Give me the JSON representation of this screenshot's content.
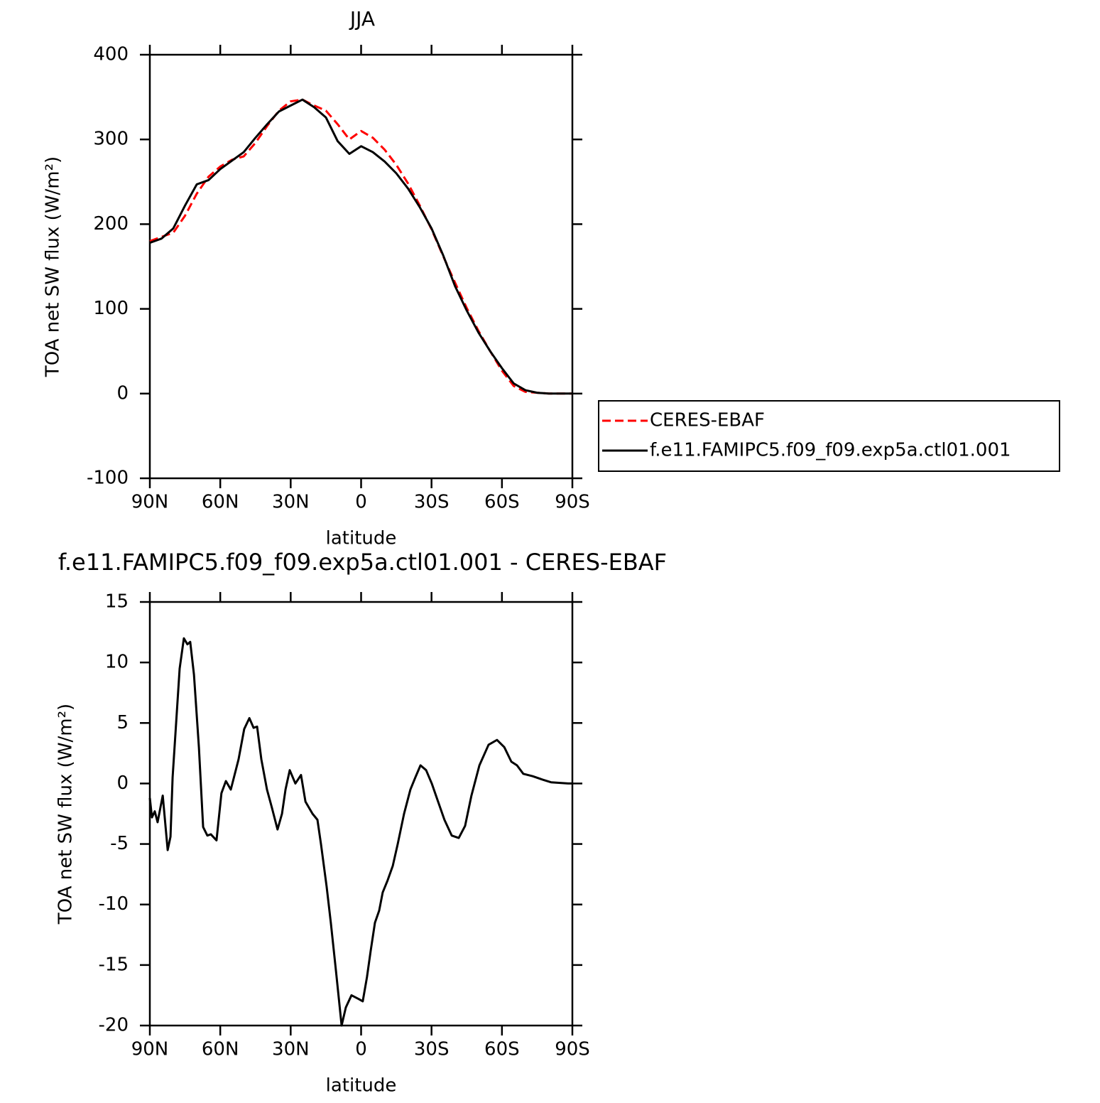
{
  "chart_data": [
    {
      "type": "line",
      "title": "JJA",
      "xlabel": "latitude",
      "ylabel": "TOA net SW flux (W/m²)",
      "xlim": [
        90,
        -90
      ],
      "xticks": [
        {
          "value": 90,
          "label": "90N"
        },
        {
          "value": 60,
          "label": "60N"
        },
        {
          "value": 30,
          "label": "30N"
        },
        0,
        {
          "value": -30,
          "label": "30S"
        },
        {
          "value": -60,
          "label": "60S"
        },
        {
          "value": -90,
          "label": "90S"
        }
      ],
      "ylim": [
        -100,
        400
      ],
      "yticks": [
        -100,
        0,
        100,
        200,
        300,
        400
      ],
      "legend": "right",
      "x": [
        90,
        85,
        80,
        75,
        70,
        65,
        60,
        55,
        50,
        45,
        40,
        35,
        30,
        25,
        20,
        15,
        10,
        5,
        0,
        -5,
        -10,
        -15,
        -20,
        -25,
        -30,
        -35,
        -40,
        -45,
        -50,
        -55,
        -60,
        -65,
        -70,
        -75,
        -80,
        -85,
        -90
      ],
      "series": [
        {
          "name": "CERES-EBAF",
          "color": "#ff0000",
          "linestyle": "dashed",
          "values": [
            180,
            185,
            190,
            210,
            236,
            256,
            268,
            276,
            280,
            296,
            316,
            334,
            345,
            347,
            340,
            334,
            318,
            300,
            310,
            302,
            288,
            270,
            248,
            222,
            194,
            162,
            131,
            101,
            74,
            50,
            27,
            9,
            2,
            1,
            0,
            0,
            0
          ]
        },
        {
          "name": "f.e11.FAMIPC5.f09_f09.exp5a.ctl01.001",
          "color": "#000000",
          "linestyle": "solid",
          "values": [
            178,
            183,
            195,
            222,
            247,
            252,
            265,
            275,
            285,
            302,
            318,
            333,
            340,
            347,
            338,
            326,
            298,
            283,
            292,
            285,
            274,
            260,
            242,
            220,
            195,
            163,
            127,
            98,
            72,
            50,
            30,
            12,
            4,
            1,
            0,
            0,
            0
          ]
        }
      ]
    },
    {
      "type": "line",
      "title": "f.e11.FAMIPC5.f09_f09.exp5a.ctl01.001 - CERES-EBAF",
      "xlabel": "latitude",
      "ylabel": "TOA net SW flux (W/m²)",
      "xlim": [
        90,
        -90
      ],
      "xticks": [
        {
          "value": 90,
          "label": "90N"
        },
        {
          "value": 60,
          "label": "60N"
        },
        {
          "value": 30,
          "label": "30N"
        },
        0,
        {
          "value": -30,
          "label": "30S"
        },
        {
          "value": -60,
          "label": "60S"
        },
        {
          "value": -90,
          "label": "90S"
        }
      ],
      "ylim": [
        -20,
        15
      ],
      "yticks": [
        -20,
        -15,
        -10,
        -5,
        0,
        5,
        10,
        15
      ],
      "x": [
        90,
        89.1,
        87.9,
        86.7,
        84.5,
        82.4,
        81.2,
        80.3,
        78.8,
        77.3,
        75.5,
        74,
        72.8,
        71.2,
        69.1,
        67.3,
        65.5,
        64,
        61.6,
        59.5,
        57.6,
        55.5,
        52.2,
        49.8,
        47.6,
        45.8,
        44.3,
        42.5,
        40.1,
        38,
        35.6,
        33.7,
        32.2,
        30.4,
        28,
        25.6,
        23.7,
        20.7,
        18.6,
        17.1,
        14.7,
        12.9,
        10.7,
        8.3,
        6.5,
        4.1,
        1.1,
        -0.7,
        -2.5,
        -4.1,
        -5.9,
        -7.7,
        -9.2,
        -11.3,
        -13.5,
        -15.6,
        -18.3,
        -21,
        -23.1,
        -25.3,
        -27.7,
        -30.1,
        -32.8,
        -35.5,
        -38.6,
        -41.6,
        -44.3,
        -47,
        -50.4,
        -54.3,
        -57.9,
        -61,
        -64,
        -66.4,
        -69.1,
        -73.1,
        -77.6,
        -80.9,
        -88.2,
        -90
      ],
      "series": [
        {
          "color": "#000000",
          "linestyle": "solid",
          "values": [
            -1.2,
            -2.8,
            -2.3,
            -3.2,
            -1.0,
            -5.5,
            -4.4,
            0.5,
            5,
            9.5,
            12.0,
            11.5,
            11.7,
            9,
            3,
            -3.6,
            -4.3,
            -4.2,
            -4.7,
            -0.8,
            0.2,
            -0.5,
            2,
            4.5,
            5.4,
            4.6,
            4.7,
            2.0,
            -0.5,
            -2.0,
            -3.8,
            -2.5,
            -0.5,
            1.1,
            0,
            0.7,
            -1.5,
            -2.5,
            -3.0,
            -5,
            -8.5,
            -11.5,
            -15.5,
            -20,
            -18.5,
            -17.5,
            -17.8,
            -18,
            -16,
            -13.8,
            -11.5,
            -10.5,
            -9,
            -8,
            -6.8,
            -5,
            -2.5,
            -0.5,
            0.5,
            1.5,
            1.1,
            0,
            -1.5,
            -3,
            -4.3,
            -4.5,
            -3.5,
            -1,
            1.5,
            3.2,
            3.6,
            3,
            1.8,
            1.5,
            0.8,
            0.6,
            0.3,
            0.1,
            0,
            0
          ]
        }
      ]
    }
  ]
}
